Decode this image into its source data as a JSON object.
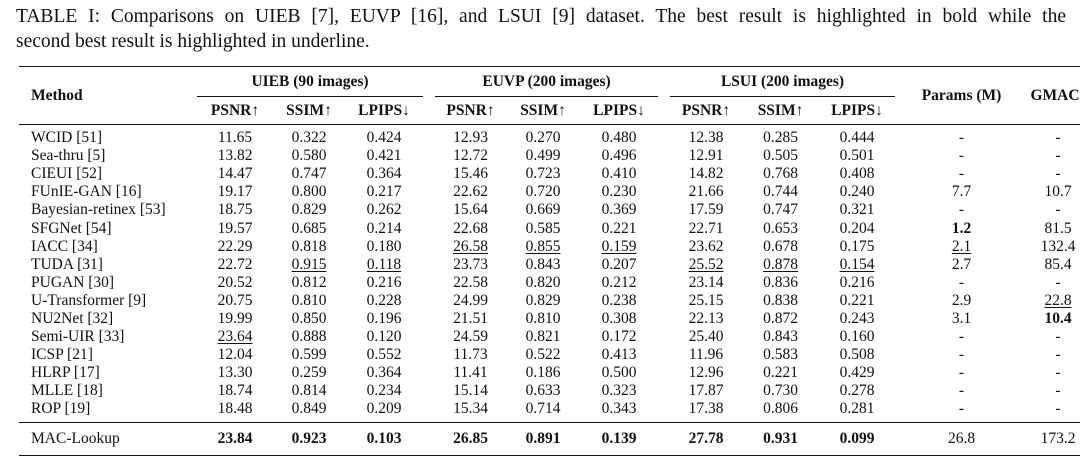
{
  "caption": {
    "line1": "TABLE I: Comparisons on UIEB [7], EUVP [16], and LSUI [9] dataset. The best result is highlighted in bold while the",
    "line2": "second best result is highlighted in underline."
  },
  "header": {
    "method": "Method",
    "groups": [
      "UIEB (90 images)",
      "EUVP (200 images)",
      "LSUI (200 images)"
    ],
    "metrics": [
      "PSNR↑",
      "SSIM↑",
      "LPIPS↓"
    ],
    "params": "Params (M)",
    "gmacs": "GMACs"
  },
  "rows": [
    {
      "method": "WCID [51]",
      "cells": [
        "11.65",
        "0.322",
        "0.424",
        "12.93",
        "0.270",
        "0.480",
        "12.38",
        "0.285",
        "0.444",
        "-",
        "-"
      ]
    },
    {
      "method": "Sea-thru [5]",
      "cells": [
        "13.82",
        "0.580",
        "0.421",
        "12.72",
        "0.499",
        "0.496",
        "12.91",
        "0.505",
        "0.501",
        "-",
        "-"
      ]
    },
    {
      "method": "CIEUI [52]",
      "cells": [
        "14.47",
        "0.747",
        "0.364",
        "15.46",
        "0.723",
        "0.410",
        "14.82",
        "0.768",
        "0.408",
        "-",
        "-"
      ]
    },
    {
      "method": "FUnIE-GAN [16]",
      "cells": [
        "19.17",
        "0.800",
        "0.217",
        "22.62",
        "0.720",
        "0.230",
        "21.66",
        "0.744",
        "0.240",
        "7.7",
        "10.7"
      ]
    },
    {
      "method": "Bayesian-retinex [53]",
      "cells": [
        "18.75",
        "0.829",
        "0.262",
        "15.64",
        "0.669",
        "0.369",
        "17.59",
        "0.747",
        "0.321",
        "-",
        "-"
      ]
    },
    {
      "method": "SFGNet [54]",
      "cells": [
        "19.57",
        "0.685",
        "0.214",
        "22.68",
        "0.585",
        "0.221",
        "22.71",
        "0.653",
        "0.204",
        "1.2",
        "81.5"
      ]
    },
    {
      "method": "IACC [34]",
      "cells": [
        "22.29",
        "0.818",
        "0.180",
        "26.58",
        "0.855",
        "0.159",
        "23.62",
        "0.678",
        "0.175",
        "2.1",
        "132.4"
      ]
    },
    {
      "method": "TUDA [31]",
      "cells": [
        "22.72",
        "0.915",
        "0.118",
        "23.73",
        "0.843",
        "0.207",
        "25.52",
        "0.878",
        "0.154",
        "2.7",
        "85.4"
      ]
    },
    {
      "method": "PUGAN [30]",
      "cells": [
        "20.52",
        "0.812",
        "0.216",
        "22.58",
        "0.820",
        "0.212",
        "23.14",
        "0.836",
        "0.216",
        "-",
        "-"
      ]
    },
    {
      "method": "U-Transformer [9]",
      "cells": [
        "20.75",
        "0.810",
        "0.228",
        "24.99",
        "0.829",
        "0.238",
        "25.15",
        "0.838",
        "0.221",
        "2.9",
        "22.8"
      ]
    },
    {
      "method": "NU2Net [32]",
      "cells": [
        "19.99",
        "0.850",
        "0.196",
        "21.51",
        "0.810",
        "0.308",
        "22.13",
        "0.872",
        "0.243",
        "3.1",
        "10.4"
      ]
    },
    {
      "method": "Semi-UIR [33]",
      "cells": [
        "23.64",
        "0.888",
        "0.120",
        "24.59",
        "0.821",
        "0.172",
        "25.40",
        "0.843",
        "0.160",
        "-",
        "-"
      ]
    },
    {
      "method": "ICSP [21]",
      "cells": [
        "12.04",
        "0.599",
        "0.552",
        "11.73",
        "0.522",
        "0.413",
        "11.96",
        "0.583",
        "0.508",
        "-",
        "-"
      ]
    },
    {
      "method": "HLRP [17]",
      "cells": [
        "13.30",
        "0.259",
        "0.364",
        "11.41",
        "0.186",
        "0.500",
        "12.96",
        "0.221",
        "0.429",
        "-",
        "-"
      ]
    },
    {
      "method": "MLLE [18]",
      "cells": [
        "18.74",
        "0.814",
        "0.234",
        "15.14",
        "0.633",
        "0.323",
        "17.87",
        "0.730",
        "0.278",
        "-",
        "-"
      ]
    },
    {
      "method": "ROP [19]",
      "cells": [
        "18.48",
        "0.849",
        "0.209",
        "15.34",
        "0.714",
        "0.343",
        "17.38",
        "0.806",
        "0.281",
        "-",
        "-"
      ]
    }
  ],
  "final": {
    "method": "MAC-Lookup",
    "cells": [
      "23.84",
      "0.923",
      "0.103",
      "26.85",
      "0.891",
      "0.139",
      "27.78",
      "0.931",
      "0.099",
      "26.8",
      "173.2"
    ]
  }
}
